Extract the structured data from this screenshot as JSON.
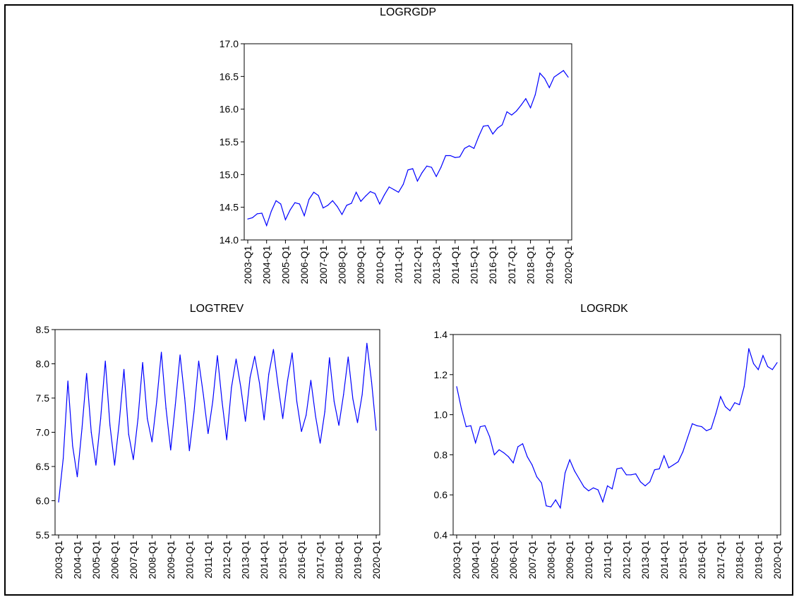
{
  "chart_data": [
    {
      "type": "line",
      "title": "LOGRGDP",
      "xlabel": "",
      "ylabel": "",
      "ylim": [
        14.0,
        17.0
      ],
      "yticks": [
        "14.0",
        "14.5",
        "15.0",
        "15.5",
        "16.0",
        "16.5",
        "17.0"
      ],
      "xticks": [
        "2003-Q1",
        "2004-Q1",
        "2005-Q1",
        "2006-Q1",
        "2007-Q1",
        "2008-Q1",
        "2009-Q1",
        "2010-Q1",
        "2011-Q1",
        "2012-Q1",
        "2013-Q1",
        "2014-Q1",
        "2015-Q1",
        "2016-Q1",
        "2017-Q1",
        "2018-Q1",
        "2019-Q1",
        "2020-Q1"
      ],
      "grid": false,
      "color": "#0000ff",
      "values": [
        14.32,
        14.34,
        14.4,
        14.41,
        14.22,
        14.44,
        14.6,
        14.55,
        14.31,
        14.46,
        14.57,
        14.55,
        14.37,
        14.62,
        14.73,
        14.68,
        14.49,
        14.53,
        14.6,
        14.51,
        14.39,
        14.53,
        14.56,
        14.73,
        14.59,
        14.67,
        14.74,
        14.71,
        14.55,
        14.69,
        14.81,
        14.77,
        14.73,
        14.85,
        15.07,
        15.09,
        14.9,
        15.03,
        15.13,
        15.11,
        14.97,
        15.11,
        15.29,
        15.29,
        15.26,
        15.27,
        15.4,
        15.44,
        15.4,
        15.58,
        15.74,
        15.75,
        15.62,
        15.71,
        15.76,
        15.96,
        15.91,
        15.97,
        16.06,
        16.16,
        16.02,
        16.22,
        16.55,
        16.47,
        16.33,
        16.49,
        16.54,
        16.59,
        16.49
      ]
    },
    {
      "type": "line",
      "title": "LOGTREV",
      "xlabel": "",
      "ylabel": "",
      "ylim": [
        5.5,
        8.5
      ],
      "yticks": [
        "5.5",
        "6.0",
        "6.5",
        "7.0",
        "7.5",
        "8.0",
        "8.5"
      ],
      "xticks": [
        "2003-Q1",
        "2004-Q1",
        "2005-Q1",
        "2006-Q1",
        "2007-Q1",
        "2008-Q1",
        "2009-Q1",
        "2010-Q1",
        "2011-Q1",
        "2012-Q1",
        "2013-Q1",
        "2014-Q1",
        "2015-Q1",
        "2016-Q1",
        "2017-Q1",
        "2018-Q1",
        "2019-Q1",
        "2020-Q1"
      ],
      "grid": false,
      "color": "#0000ff",
      "values": [
        5.98,
        6.62,
        7.75,
        6.8,
        6.35,
        7.05,
        7.86,
        7.0,
        6.52,
        7.2,
        8.04,
        7.1,
        6.52,
        7.15,
        7.92,
        6.97,
        6.6,
        7.2,
        8.02,
        7.2,
        6.86,
        7.45,
        8.17,
        7.35,
        6.74,
        7.4,
        8.13,
        7.5,
        6.73,
        7.3,
        8.04,
        7.55,
        6.98,
        7.45,
        8.12,
        7.45,
        6.89,
        7.65,
        8.07,
        7.66,
        7.16,
        7.8,
        8.11,
        7.72,
        7.18,
        7.85,
        8.21,
        7.68,
        7.2,
        7.75,
        8.16,
        7.45,
        7.01,
        7.25,
        7.76,
        7.24,
        6.84,
        7.3,
        8.09,
        7.45,
        7.1,
        7.55,
        8.1,
        7.49,
        7.14,
        7.55,
        8.3,
        7.74,
        7.03
      ]
    },
    {
      "type": "line",
      "title": "LOGRDK",
      "xlabel": "",
      "ylabel": "",
      "ylim": [
        0.4,
        1.4
      ],
      "yticks": [
        "0.4",
        "0.6",
        "0.8",
        "1.0",
        "1.2",
        "1.4"
      ],
      "xticks": [
        "2003-Q1",
        "2004-Q1",
        "2005-Q1",
        "2006-Q1",
        "2007-Q1",
        "2008-Q1",
        "2009-Q1",
        "2010-Q1",
        "2011-Q1",
        "2012-Q1",
        "2013-Q1",
        "2014-Q1",
        "2015-Q1",
        "2016-Q1",
        "2017-Q1",
        "2018-Q1",
        "2019-Q1",
        "2020-Q1"
      ],
      "grid": false,
      "color": "#0000ff",
      "values": [
        1.14,
        1.03,
        0.94,
        0.945,
        0.86,
        0.94,
        0.945,
        0.89,
        0.8,
        0.825,
        0.81,
        0.79,
        0.76,
        0.84,
        0.855,
        0.79,
        0.75,
        0.69,
        0.66,
        0.545,
        0.54,
        0.575,
        0.535,
        0.71,
        0.775,
        0.72,
        0.68,
        0.64,
        0.62,
        0.635,
        0.625,
        0.565,
        0.645,
        0.63,
        0.73,
        0.735,
        0.7,
        0.7,
        0.705,
        0.665,
        0.645,
        0.665,
        0.725,
        0.73,
        0.795,
        0.735,
        0.75,
        0.765,
        0.815,
        0.885,
        0.955,
        0.945,
        0.94,
        0.92,
        0.93,
        1.005,
        1.09,
        1.04,
        1.02,
        1.06,
        1.05,
        1.14,
        1.33,
        1.255,
        1.225,
        1.295,
        1.24,
        1.225,
        1.26
      ]
    }
  ]
}
